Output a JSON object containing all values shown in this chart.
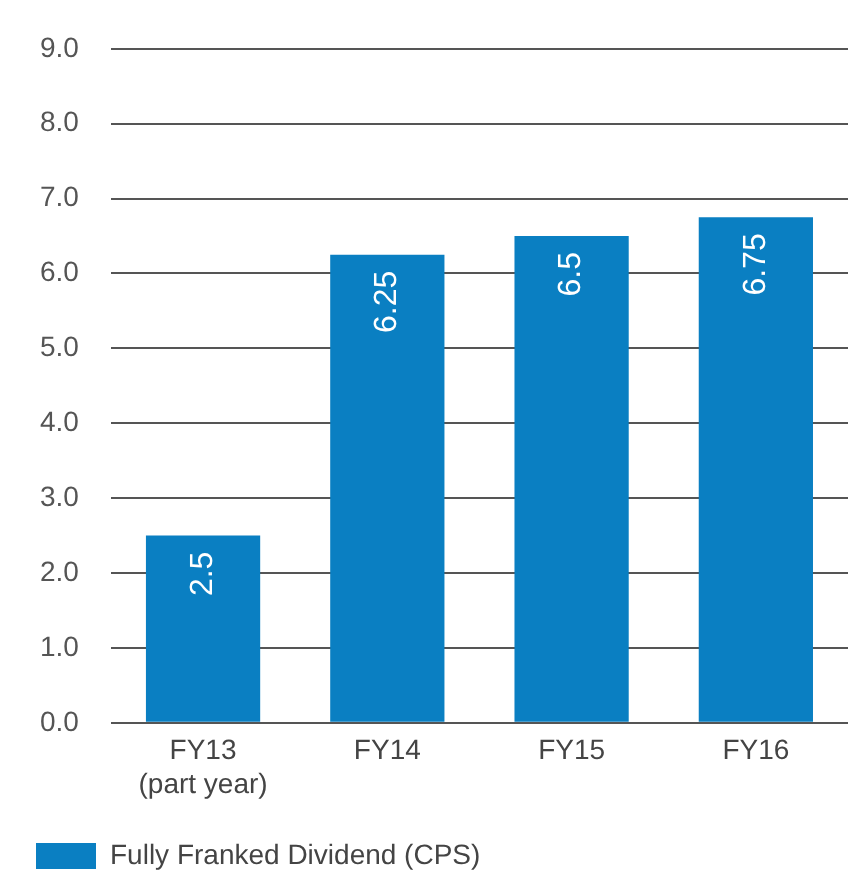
{
  "chart_data": {
    "type": "bar",
    "categories": [
      "FY13\n(part year)",
      "FY14",
      "FY15",
      "FY16"
    ],
    "series": [
      {
        "name": "Fully Franked Dividend (CPS)",
        "color": "#0a7fc2",
        "values": [
          2.5,
          6.25,
          6.5,
          6.75
        ]
      }
    ],
    "ylim": [
      0,
      9
    ],
    "yticks": [
      {
        "value": 0,
        "label": "0.0"
      },
      {
        "value": 1,
        "label": "1.0"
      },
      {
        "value": 2,
        "label": "2.0"
      },
      {
        "value": 3,
        "label": "3.0"
      },
      {
        "value": 4,
        "label": "4.0"
      },
      {
        "value": 5,
        "label": "5.0"
      },
      {
        "value": 6,
        "label": "6.0"
      },
      {
        "value": 7,
        "label": "7.0"
      },
      {
        "value": 8,
        "label": "8.0"
      },
      {
        "value": 9,
        "label": "9.0"
      }
    ],
    "grid": "y",
    "legend": "bottom left",
    "data_labels": true
  }
}
